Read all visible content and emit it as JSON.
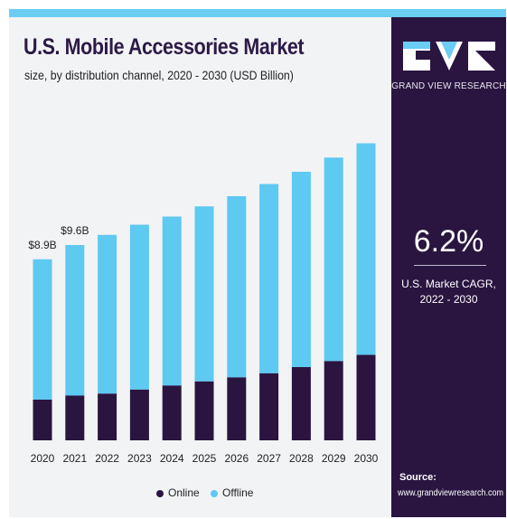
{
  "header": {
    "title": "U.S. Mobile Accessories Market",
    "subtitle": "size, by distribution channel, 2020 - 2030 (USD Billion)"
  },
  "brand": {
    "name": "GRAND VIEW RESEARCH",
    "logo_icon": "grand-view-research-logo"
  },
  "side_panel": {
    "cagr_value": "6.2%",
    "cagr_label_line1": "U.S. Market CAGR,",
    "cagr_label_line2": "2022 - 2030",
    "source_label": "Source:",
    "source_url": "www.grandviewresearch.com"
  },
  "legend": {
    "online": "Online",
    "offline": "Offline"
  },
  "colors": {
    "online": "#2a1540",
    "offline": "#5ec9f1",
    "panel": "#2a1540",
    "accent": "#69cdf4"
  },
  "chart_data": {
    "type": "bar",
    "stacked": true,
    "categories": [
      "2020",
      "2021",
      "2022",
      "2023",
      "2024",
      "2025",
      "2026",
      "2027",
      "2028",
      "2029",
      "2030"
    ],
    "series": [
      {
        "name": "Online",
        "values": [
          2.0,
          2.2,
          2.3,
          2.5,
          2.7,
          2.9,
          3.1,
          3.3,
          3.6,
          3.9,
          4.2
        ]
      },
      {
        "name": "Offline",
        "values": [
          6.9,
          7.4,
          7.8,
          8.1,
          8.3,
          8.6,
          8.9,
          9.3,
          9.6,
          10.0,
          10.4
        ]
      }
    ],
    "data_labels": [
      {
        "category": "2020",
        "text": "$8.9B"
      },
      {
        "category": "2021",
        "text": "$9.6B"
      }
    ],
    "title": "U.S. Mobile Accessories Market",
    "xlabel": "",
    "ylabel": "",
    "ylim": [
      0,
      15
    ],
    "grid": false,
    "legend_position": "bottom"
  }
}
